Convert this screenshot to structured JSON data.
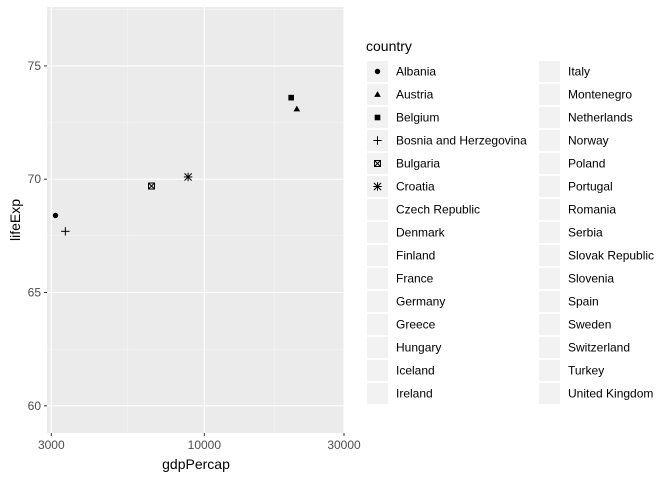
{
  "chart_data": {
    "type": "scatter",
    "xlabel": "gdpPercap",
    "ylabel": "lifeExp",
    "x_scale": "log10",
    "xlim": [
      2900,
      30000
    ],
    "ylim": [
      58.8,
      77.6
    ],
    "x_ticks": [
      3000,
      10000,
      30000
    ],
    "x_tick_labels": [
      "3000",
      "10000",
      "30000"
    ],
    "y_ticks": [
      60,
      65,
      70,
      75
    ],
    "y_tick_labels": [
      "60",
      "65",
      "70",
      "75"
    ],
    "grid": true,
    "legend": {
      "title": "country",
      "position": "right",
      "columns": 2,
      "entries": [
        {
          "label": "Albania",
          "shape": "circle"
        },
        {
          "label": "Austria",
          "shape": "triangle"
        },
        {
          "label": "Belgium",
          "shape": "square"
        },
        {
          "label": "Bosnia and Herzegovina",
          "shape": "plus"
        },
        {
          "label": "Bulgaria",
          "shape": "square-x"
        },
        {
          "label": "Croatia",
          "shape": "asterisk"
        },
        {
          "label": "Czech Republic",
          "shape": "none"
        },
        {
          "label": "Denmark",
          "shape": "none"
        },
        {
          "label": "Finland",
          "shape": "none"
        },
        {
          "label": "France",
          "shape": "none"
        },
        {
          "label": "Germany",
          "shape": "none"
        },
        {
          "label": "Greece",
          "shape": "none"
        },
        {
          "label": "Hungary",
          "shape": "none"
        },
        {
          "label": "Iceland",
          "shape": "none"
        },
        {
          "label": "Ireland",
          "shape": "none"
        },
        {
          "label": "Italy",
          "shape": "none"
        },
        {
          "label": "Montenegro",
          "shape": "none"
        },
        {
          "label": "Netherlands",
          "shape": "none"
        },
        {
          "label": "Norway",
          "shape": "none"
        },
        {
          "label": "Poland",
          "shape": "none"
        },
        {
          "label": "Portugal",
          "shape": "none"
        },
        {
          "label": "Romania",
          "shape": "none"
        },
        {
          "label": "Serbia",
          "shape": "none"
        },
        {
          "label": "Slovak Republic",
          "shape": "none"
        },
        {
          "label": "Slovenia",
          "shape": "none"
        },
        {
          "label": "Spain",
          "shape": "none"
        },
        {
          "label": "Sweden",
          "shape": "none"
        },
        {
          "label": "Switzerland",
          "shape": "none"
        },
        {
          "label": "Turkey",
          "shape": "none"
        },
        {
          "label": "United Kingdom",
          "shape": "none"
        }
      ]
    },
    "points": [
      {
        "country": "Albania",
        "shape": "circle",
        "x": 3100,
        "y": 68.4
      },
      {
        "country": "Bosnia and Herzegovina",
        "shape": "plus",
        "x": 3350,
        "y": 67.7
      },
      {
        "country": "Bulgaria",
        "shape": "square-x",
        "x": 6600,
        "y": 69.7
      },
      {
        "country": "Croatia",
        "shape": "asterisk",
        "x": 8800,
        "y": 70.1
      },
      {
        "country": "Belgium",
        "shape": "square",
        "x": 19800,
        "y": 73.6
      },
      {
        "country": "Austria",
        "shape": "triangle",
        "x": 20700,
        "y": 73.1
      }
    ],
    "colors": {
      "panel_background": "#ebebeb",
      "grid_major": "#ffffff",
      "grid_minor": "#f5f5f5",
      "key_background": "#f2f2f2",
      "point": "#000000",
      "tick_text": "#4d4d4d"
    }
  }
}
